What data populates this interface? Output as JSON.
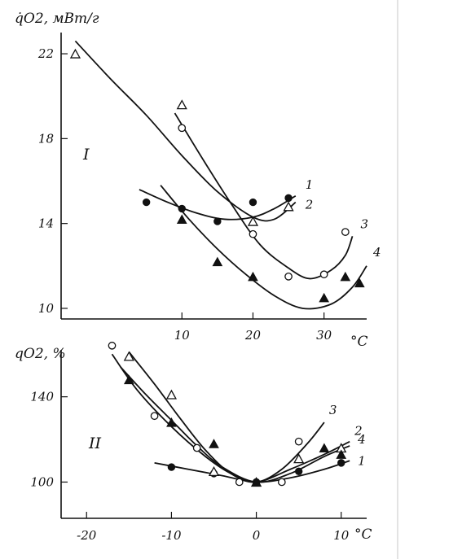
{
  "chart_data": [
    {
      "panel": "I",
      "type": "scatter",
      "ylabel": "q̇O2, мВт/г",
      "xlabel": "°C",
      "xlim": [
        -7,
        36
      ],
      "ylim": [
        9.5,
        23
      ],
      "x_ticks": [
        10,
        20,
        30
      ],
      "x_tick_labels": [
        "10",
        "20",
        "30"
      ],
      "y_ticks": [
        10,
        14,
        18,
        22
      ],
      "y_tick_labels": [
        "10",
        "14",
        "18",
        "22"
      ],
      "grid": false,
      "series": [
        {
          "name": "1",
          "marker": "filled-circle",
          "points": [
            [
              5,
              15
            ],
            [
              10,
              14.7
            ],
            [
              15,
              14.1
            ],
            [
              20,
              15
            ],
            [
              25,
              15.2
            ]
          ],
          "curve": [
            [
              4,
              15.6
            ],
            [
              8,
              15
            ],
            [
              12,
              14.5
            ],
            [
              16,
              14.2
            ],
            [
              20,
              14.3
            ],
            [
              23,
              14.7
            ],
            [
              26,
              15.3
            ]
          ]
        },
        {
          "name": "2",
          "marker": "open-triangle",
          "points": [
            [
              -5,
              22
            ],
            [
              10,
              19.6
            ],
            [
              20,
              14.1
            ],
            [
              25,
              14.8
            ]
          ],
          "curve": [
            [
              -5,
              22.6
            ],
            [
              0,
              20.8
            ],
            [
              5,
              19.1
            ],
            [
              10,
              17.2
            ],
            [
              15,
              15.5
            ],
            [
              20,
              14.3
            ],
            [
              23,
              14.2
            ],
            [
              26,
              15
            ]
          ]
        },
        {
          "name": "3",
          "marker": "open-circle",
          "points": [
            [
              10,
              18.5
            ],
            [
              20,
              13.5
            ],
            [
              25,
              11.5
            ],
            [
              30,
              11.6
            ],
            [
              33,
              13.6
            ]
          ],
          "curve": [
            [
              9,
              19.2
            ],
            [
              13,
              17
            ],
            [
              17,
              14.9
            ],
            [
              21,
              13
            ],
            [
              25,
              11.9
            ],
            [
              28,
              11.4
            ],
            [
              31,
              11.8
            ],
            [
              33,
              12.5
            ],
            [
              34,
              13.4
            ]
          ]
        },
        {
          "name": "4",
          "marker": "filled-triangle",
          "points": [
            [
              10,
              14.2
            ],
            [
              15,
              12.2
            ],
            [
              20,
              11.5
            ],
            [
              30,
              10.5
            ],
            [
              33,
              11.5
            ],
            [
              35,
              11.2
            ]
          ],
          "curve": [
            [
              7,
              15.8
            ],
            [
              11,
              14.2
            ],
            [
              15,
              12.8
            ],
            [
              19,
              11.6
            ],
            [
              23,
              10.6
            ],
            [
              27,
              10
            ],
            [
              31,
              10.2
            ],
            [
              34,
              11
            ],
            [
              36,
              12
            ]
          ]
        }
      ]
    },
    {
      "panel": "II",
      "type": "scatter",
      "ylabel": "qO2, %",
      "xlabel": "°C",
      "xlim": [
        -23,
        13
      ],
      "ylim": [
        83,
        162
      ],
      "x_ticks": [
        -20,
        -10,
        0,
        10
      ],
      "x_tick_labels": [
        "-20",
        "-10",
        "0",
        "10"
      ],
      "y_ticks": [
        100,
        140
      ],
      "y_tick_labels": [
        "100",
        "140"
      ],
      "grid": false,
      "series": [
        {
          "name": "1",
          "marker": "filled-circle",
          "points": [
            [
              -10,
              107
            ],
            [
              -5,
              104
            ],
            [
              0,
              100
            ],
            [
              5,
              105
            ],
            [
              10,
              109
            ]
          ],
          "curve": [
            [
              -12,
              109
            ],
            [
              -8,
              106
            ],
            [
              -4,
              103
            ],
            [
              0,
              100
            ],
            [
              4,
              102
            ],
            [
              8,
              106
            ],
            [
              11,
              110
            ]
          ]
        },
        {
          "name": "2",
          "marker": "open-triangle",
          "points": [
            [
              -15,
              159
            ],
            [
              -10,
              141
            ],
            [
              -5,
              105
            ],
            [
              0,
              100
            ],
            [
              5,
              111
            ],
            [
              10,
              116
            ]
          ],
          "curve": [
            [
              -15,
              161
            ],
            [
              -12,
              146
            ],
            [
              -9,
              130
            ],
            [
              -6,
              115
            ],
            [
              -3,
              104
            ],
            [
              0,
              100
            ],
            [
              4,
              106
            ],
            [
              8,
              113
            ],
            [
              11,
              119
            ]
          ]
        },
        {
          "name": "3",
          "marker": "open-circle",
          "points": [
            [
              -17,
              164
            ],
            [
              -12,
              131
            ],
            [
              -7,
              116
            ],
            [
              -2,
              100
            ],
            [
              3,
              100
            ],
            [
              5,
              119
            ]
          ],
          "curve": [
            [
              -17,
              160
            ],
            [
              -14,
              143
            ],
            [
              -10,
              126
            ],
            [
              -6,
              112
            ],
            [
              -3,
              104
            ],
            [
              0,
              100
            ],
            [
              3,
              106
            ],
            [
              6,
              118
            ],
            [
              8,
              128
            ]
          ]
        },
        {
          "name": "4",
          "marker": "filled-triangle",
          "points": [
            [
              -15,
              148
            ],
            [
              -10,
              128
            ],
            [
              -5,
              118
            ],
            [
              0,
              100
            ],
            [
              8,
              116
            ],
            [
              10,
              113
            ]
          ],
          "curve": [
            [
              -16,
              154
            ],
            [
              -13,
              141
            ],
            [
              -10,
              129
            ],
            [
              -7,
              117
            ],
            [
              -4,
              107
            ],
            [
              0,
              100
            ],
            [
              4,
              104
            ],
            [
              8,
              112
            ],
            [
              11,
              117
            ]
          ]
        }
      ]
    }
  ]
}
